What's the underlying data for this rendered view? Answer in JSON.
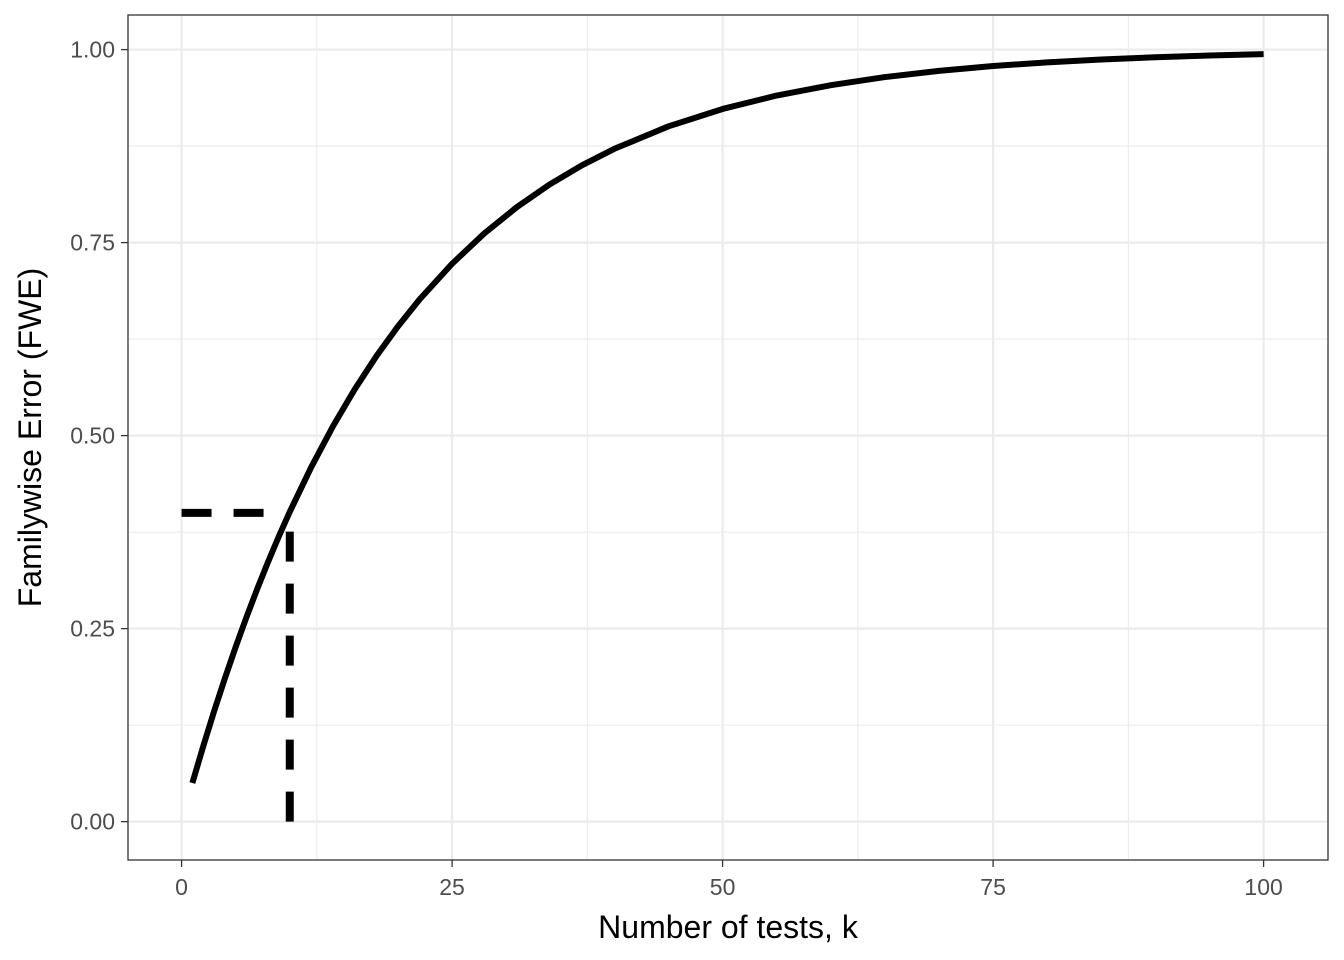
{
  "chart_data": {
    "type": "line",
    "title": "",
    "xlabel": "Number of tests, k",
    "ylabel": "Familywise Error (FWE)",
    "xlim": [
      -4.95,
      105.95
    ],
    "ylim": [
      -0.0497,
      1.0448
    ],
    "x_ticks": [
      0,
      25,
      50,
      75,
      100
    ],
    "x_tick_labels": [
      "0",
      "25",
      "50",
      "75",
      "100"
    ],
    "y_ticks": [
      0,
      0.25,
      0.5,
      0.75,
      1.0
    ],
    "y_tick_labels": [
      "0.00",
      "0.25",
      "0.50",
      "0.75",
      "1.00"
    ],
    "x_minor_ticks": [
      12.5,
      37.5,
      62.5,
      87.5
    ],
    "y_minor_ticks": [
      0.125,
      0.375,
      0.625,
      0.875
    ],
    "grid": true,
    "legend": "none",
    "colors": {
      "line": "#000000",
      "grid": "#ebebeb",
      "panel_border": "#333333",
      "tick_text": "#4d4d4d",
      "axis_title": "#000000"
    },
    "series": [
      {
        "x": [
          1,
          2,
          3,
          4,
          5,
          6,
          7,
          8,
          9,
          10,
          12,
          14,
          16,
          18,
          20,
          22,
          25,
          28,
          31,
          34,
          37,
          40,
          45,
          50,
          55,
          60,
          65,
          70,
          75,
          80,
          85,
          90,
          95,
          100
        ],
        "y": [
          0.05,
          0.0975,
          0.1426,
          0.1855,
          0.2262,
          0.2649,
          0.3017,
          0.3366,
          0.3698,
          0.4013,
          0.4596,
          0.5123,
          0.5599,
          0.6028,
          0.6415,
          0.6765,
          0.7226,
          0.7622,
          0.7961,
          0.8252,
          0.8501,
          0.8715,
          0.9006,
          0.9231,
          0.9405,
          0.9539,
          0.9644,
          0.9724,
          0.9787,
          0.9835,
          0.9872,
          0.9901,
          0.9923,
          0.9941
        ]
      }
    ],
    "reference_lines": [
      {
        "style": "dashed",
        "orientation": "horizontal",
        "y": 0.4,
        "x_from": 0,
        "x_to": 8
      },
      {
        "style": "dashed",
        "orientation": "vertical",
        "x": 10,
        "y_from": 0,
        "y_to": 0.4
      }
    ]
  }
}
